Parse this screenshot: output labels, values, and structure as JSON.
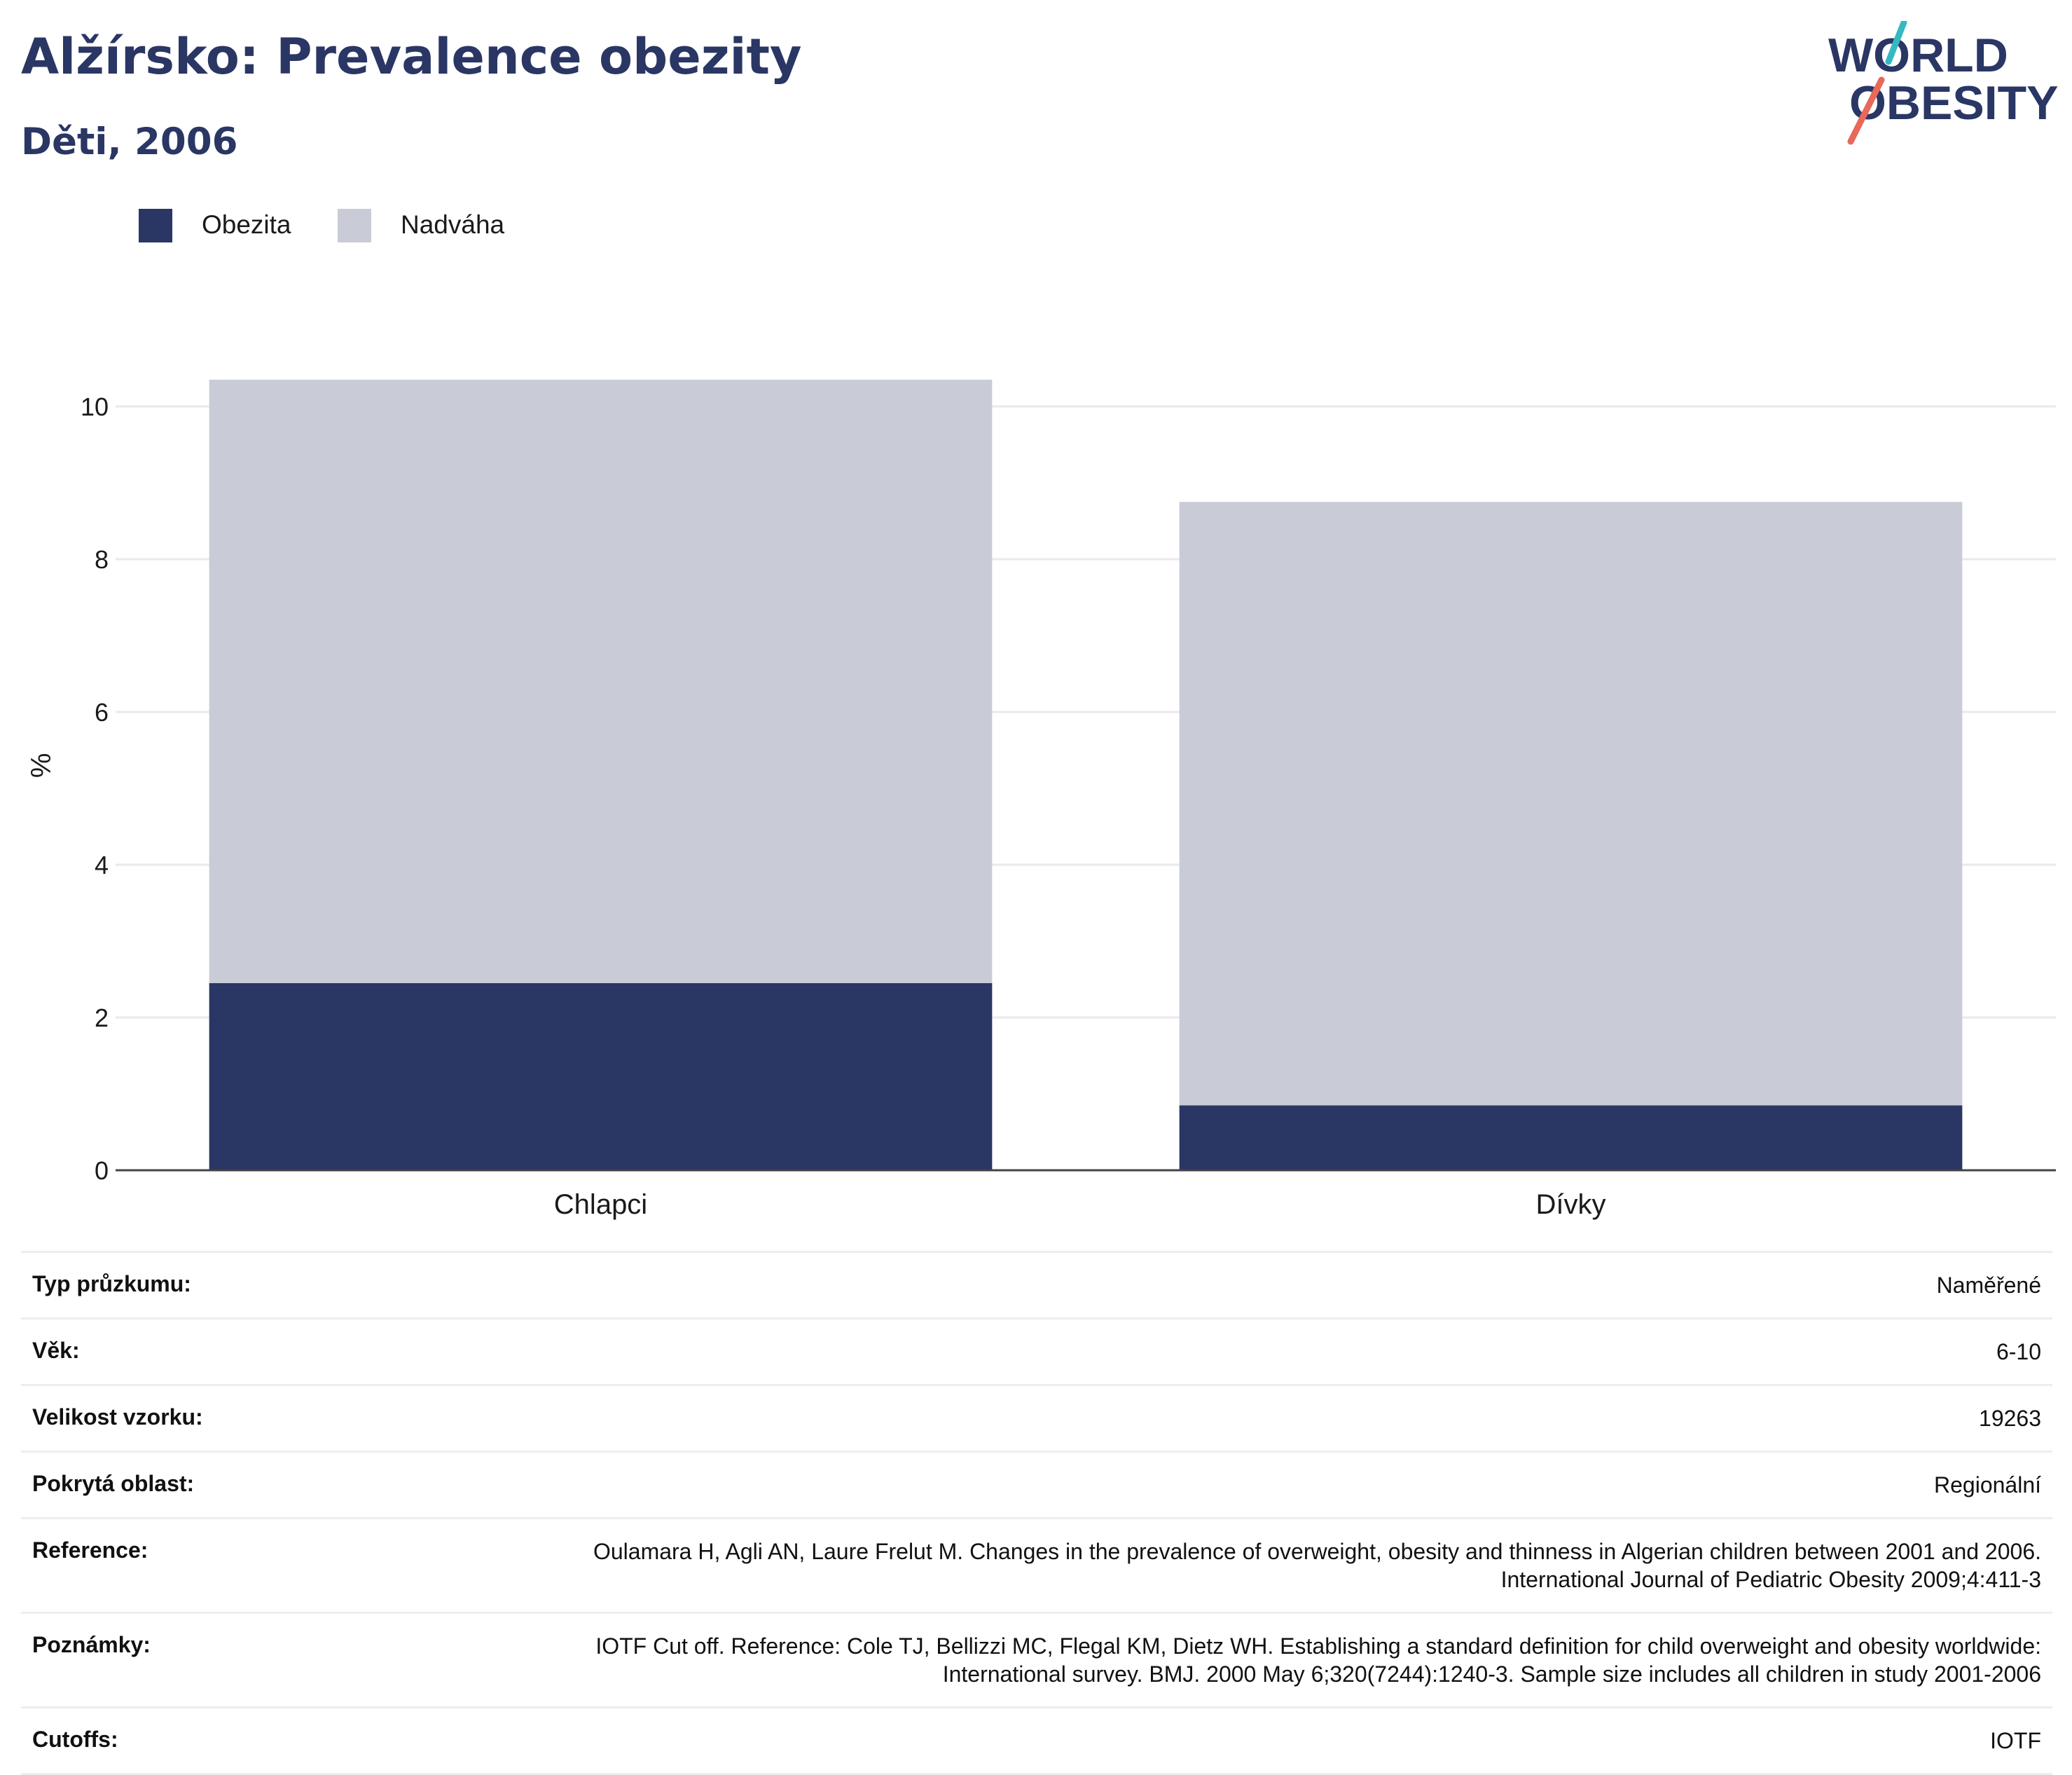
{
  "header": {
    "title": "Alžírsko: Prevalence obezity",
    "subtitle": "Děti, 2006"
  },
  "logo": {
    "line1": "WORLD",
    "line2": "OBESITY"
  },
  "legend": [
    {
      "label": "Obezita",
      "color": "#2a3664"
    },
    {
      "label": "Nadváha",
      "color": "#c9ccd7"
    }
  ],
  "chart_data": {
    "type": "bar",
    "stacked": true,
    "categories": [
      "Chlapci",
      "Dívky"
    ],
    "series": [
      {
        "name": "Obezita",
        "color": "#2a3664",
        "values": [
          2.45,
          0.85
        ]
      },
      {
        "name": "Nadváha",
        "color": "#c9ccd7",
        "values": [
          7.9,
          7.9
        ]
      }
    ],
    "totals": [
      10.35,
      8.75
    ],
    "ylabel": "%",
    "ylim": [
      0,
      10.5
    ],
    "yticks": [
      0,
      2,
      4,
      6,
      8,
      10
    ],
    "grid": true,
    "legend_position": "top-left"
  },
  "info_table": [
    {
      "key": "Typ průzkumu:",
      "value": "Naměřené"
    },
    {
      "key": "Věk:",
      "value": "6-10"
    },
    {
      "key": "Velikost vzorku:",
      "value": "19263"
    },
    {
      "key": "Pokrytá oblast:",
      "value": "Regionální"
    },
    {
      "key": "Reference:",
      "value": "Oulamara H, Agli AN, Laure Frelut M. Changes in the prevalence of overweight, obesity and thinness in Algerian children between 2001 and 2006. International Journal of Pediatric Obesity 2009;4:411-3"
    },
    {
      "key": "Poznámky:",
      "value": "IOTF Cut off. Reference: Cole TJ, Bellizzi MC, Flegal KM, Dietz WH. Establishing a standard definition for child overweight and obesity worldwide: International survey. BMJ. 2000 May 6;320(7244):1240-3. Sample size includes all children in study 2001-2006"
    },
    {
      "key": "Cutoffs:",
      "value": "IOTF"
    }
  ]
}
